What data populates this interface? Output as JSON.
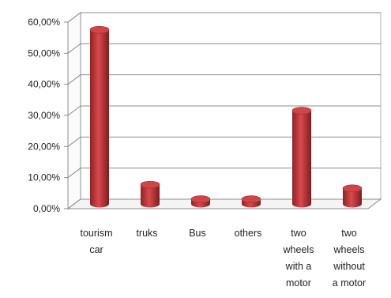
{
  "chart_data": {
    "type": "bar",
    "title": "",
    "xlabel": "",
    "ylabel": "",
    "categories": [
      [
        "tourism",
        "car"
      ],
      [
        "truks"
      ],
      [
        "Bus"
      ],
      [
        "others"
      ],
      [
        "two",
        "wheels",
        "with a",
        "motor"
      ],
      [
        "two",
        "wheels",
        "without",
        "a motor"
      ]
    ],
    "values": [
      56.0,
      6.2,
      1.5,
      1.5,
      30.0,
      5.0
    ],
    "ylim": [
      0,
      60
    ],
    "yticks": [
      "0,00%",
      "10,00%",
      "20,00%",
      "30,00%",
      "40,00%",
      "50,00%",
      "60,00%"
    ],
    "grid": true,
    "bar_color": "#c0383b"
  }
}
